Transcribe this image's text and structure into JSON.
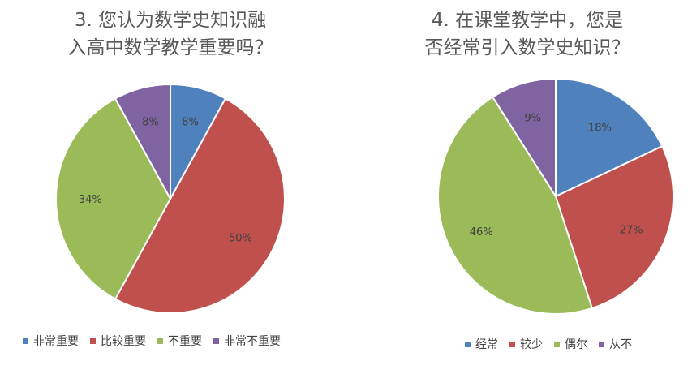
{
  "chart_data": [
    {
      "type": "pie",
      "title_lines": [
        "3. 您认为数学史知识融",
        "入高中数学教学重要吗？"
      ],
      "categories": [
        "非常重要",
        "比较重要",
        "不重要",
        "非常不重要"
      ],
      "values": [
        8,
        50,
        34,
        8
      ],
      "data_labels": [
        "8%",
        "50%",
        "34%",
        "8%"
      ],
      "colors": [
        "#4F81BD",
        "#C0504D",
        "#9BBB59",
        "#8064A2"
      ],
      "legend_position": "bottom"
    },
    {
      "type": "pie",
      "title_lines": [
        "4. 在课堂教学中，您是",
        "否经常引入数学史知识？"
      ],
      "categories": [
        "经常",
        "较少",
        "偶尔",
        "从不"
      ],
      "values": [
        18,
        27,
        46,
        9
      ],
      "data_labels": [
        "18%",
        "27%",
        "46%",
        "9%"
      ],
      "colors": [
        "#4F81BD",
        "#C0504D",
        "#9BBB59",
        "#8064A2"
      ],
      "legend_position": "bottom"
    }
  ]
}
